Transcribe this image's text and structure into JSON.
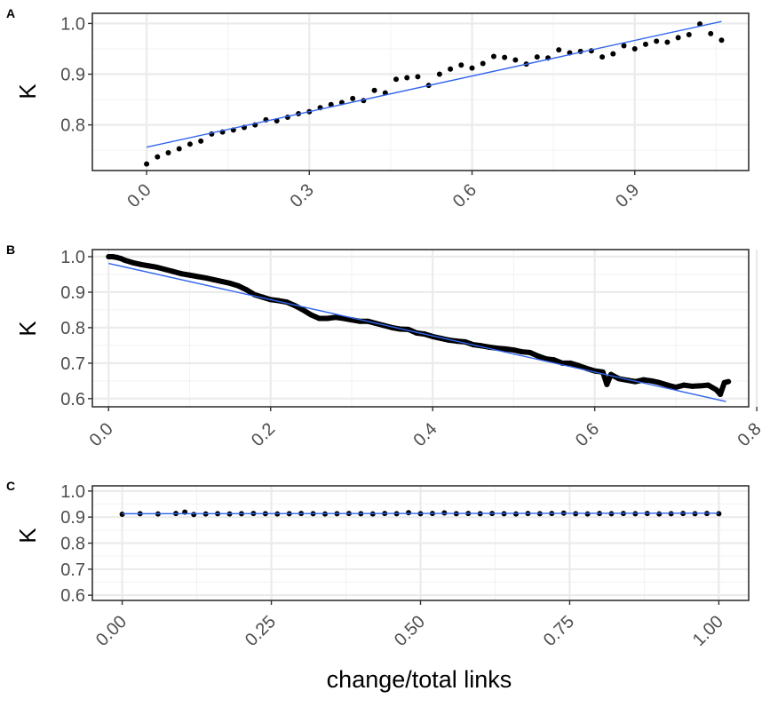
{
  "figure": {
    "xlabel": "change/total links"
  },
  "chart_data": [
    {
      "panel": "A",
      "type": "scatter",
      "title": "",
      "xlabel": "",
      "ylabel": "K",
      "xlim": [
        -0.1,
        1.11
      ],
      "ylim": [
        0.71,
        1.02
      ],
      "xticks": [
        0.0,
        0.3,
        0.6,
        0.9
      ],
      "xtick_labels": [
        "0.0",
        "0.3",
        "0.6",
        "0.9"
      ],
      "yticks": [
        0.8,
        0.9,
        1.0
      ],
      "ytick_labels": [
        "0.8",
        "0.9",
        "1.0"
      ],
      "grid": true,
      "trend_line": {
        "x": [
          0.0,
          1.06
        ],
        "y": [
          0.756,
          1.004
        ],
        "color": "#3366ee"
      },
      "x": [
        0.0,
        0.02,
        0.04,
        0.06,
        0.08,
        0.1,
        0.12,
        0.14,
        0.16,
        0.18,
        0.2,
        0.22,
        0.24,
        0.26,
        0.28,
        0.3,
        0.32,
        0.34,
        0.36,
        0.38,
        0.4,
        0.42,
        0.44,
        0.46,
        0.48,
        0.5,
        0.52,
        0.54,
        0.56,
        0.58,
        0.6,
        0.62,
        0.64,
        0.66,
        0.68,
        0.7,
        0.72,
        0.74,
        0.76,
        0.78,
        0.8,
        0.82,
        0.84,
        0.86,
        0.88,
        0.9,
        0.92,
        0.94,
        0.96,
        0.98,
        1.0,
        1.02,
        1.04,
        1.06
      ],
      "y": [
        0.723,
        0.737,
        0.745,
        0.753,
        0.762,
        0.768,
        0.782,
        0.786,
        0.79,
        0.795,
        0.8,
        0.81,
        0.808,
        0.815,
        0.822,
        0.826,
        0.834,
        0.84,
        0.844,
        0.852,
        0.848,
        0.868,
        0.863,
        0.89,
        0.893,
        0.895,
        0.878,
        0.9,
        0.91,
        0.918,
        0.912,
        0.921,
        0.935,
        0.933,
        0.928,
        0.92,
        0.934,
        0.932,
        0.948,
        0.942,
        0.945,
        0.946,
        0.934,
        0.94,
        0.956,
        0.95,
        0.959,
        0.965,
        0.963,
        0.972,
        0.978,
        0.999,
        0.98,
        0.967
      ]
    },
    {
      "panel": "B",
      "type": "scatter",
      "title": "",
      "xlabel": "",
      "ylabel": "K",
      "xlim": [
        -0.02,
        0.79
      ],
      "ylim": [
        0.577,
        1.02
      ],
      "xticks": [
        0.0,
        0.2,
        0.4,
        0.6,
        0.8
      ],
      "xtick_labels": [
        "0.0",
        "0.2",
        "0.4",
        "0.6",
        "0.8"
      ],
      "yticks": [
        0.6,
        0.7,
        0.8,
        0.9,
        1.0
      ],
      "ytick_labels": [
        "0.6",
        "0.7",
        "0.8",
        "0.9",
        "1.0"
      ],
      "grid": true,
      "trend_line": {
        "x": [
          0.0,
          0.762
        ],
        "y": [
          0.981,
          0.592
        ],
        "color": "#3366ee"
      },
      "x": [
        0.0,
        0.005,
        0.01,
        0.015,
        0.02,
        0.03,
        0.04,
        0.05,
        0.06,
        0.07,
        0.08,
        0.09,
        0.1,
        0.11,
        0.12,
        0.13,
        0.14,
        0.15,
        0.16,
        0.17,
        0.18,
        0.19,
        0.2,
        0.21,
        0.22,
        0.23,
        0.24,
        0.25,
        0.26,
        0.27,
        0.28,
        0.29,
        0.3,
        0.31,
        0.32,
        0.33,
        0.34,
        0.35,
        0.36,
        0.37,
        0.38,
        0.39,
        0.4,
        0.41,
        0.42,
        0.43,
        0.44,
        0.45,
        0.46,
        0.47,
        0.48,
        0.49,
        0.5,
        0.51,
        0.52,
        0.53,
        0.54,
        0.55,
        0.56,
        0.57,
        0.58,
        0.59,
        0.6,
        0.61,
        0.615,
        0.62,
        0.63,
        0.64,
        0.65,
        0.66,
        0.67,
        0.68,
        0.69,
        0.7,
        0.71,
        0.72,
        0.73,
        0.74,
        0.75,
        0.755,
        0.76,
        0.765
      ],
      "y": [
        1.0,
        1.0,
        0.998,
        0.995,
        0.99,
        0.983,
        0.978,
        0.974,
        0.97,
        0.964,
        0.958,
        0.952,
        0.948,
        0.944,
        0.94,
        0.935,
        0.93,
        0.925,
        0.918,
        0.907,
        0.893,
        0.886,
        0.879,
        0.876,
        0.872,
        0.862,
        0.85,
        0.836,
        0.826,
        0.826,
        0.829,
        0.826,
        0.822,
        0.818,
        0.818,
        0.812,
        0.806,
        0.8,
        0.796,
        0.795,
        0.785,
        0.782,
        0.775,
        0.77,
        0.765,
        0.762,
        0.76,
        0.752,
        0.749,
        0.745,
        0.742,
        0.74,
        0.737,
        0.732,
        0.73,
        0.72,
        0.712,
        0.709,
        0.7,
        0.7,
        0.693,
        0.685,
        0.678,
        0.675,
        0.64,
        0.668,
        0.656,
        0.652,
        0.648,
        0.653,
        0.65,
        0.645,
        0.638,
        0.632,
        0.638,
        0.635,
        0.636,
        0.638,
        0.625,
        0.612,
        0.645,
        0.648
      ]
    },
    {
      "panel": "C",
      "type": "scatter",
      "title": "",
      "xlabel": "",
      "ylabel": "K",
      "xlim": [
        -0.05,
        1.05
      ],
      "ylim": [
        0.58,
        1.02
      ],
      "xticks": [
        0.0,
        0.25,
        0.5,
        0.75,
        1.0
      ],
      "xtick_labels": [
        "0.00",
        "0.25",
        "0.50",
        "0.75",
        "1.00"
      ],
      "yticks": [
        0.6,
        0.7,
        0.8,
        0.9,
        1.0
      ],
      "ytick_labels": [
        "0.6",
        "0.7",
        "0.8",
        "0.9",
        "1.0"
      ],
      "grid": true,
      "trend_line": {
        "x": [
          0.0,
          1.0
        ],
        "y": [
          0.913,
          0.915
        ],
        "color": "#3366ee"
      },
      "x": [
        0.0,
        0.03,
        0.06,
        0.09,
        0.105,
        0.12,
        0.14,
        0.16,
        0.18,
        0.2,
        0.22,
        0.24,
        0.26,
        0.28,
        0.3,
        0.32,
        0.34,
        0.36,
        0.38,
        0.4,
        0.42,
        0.44,
        0.46,
        0.48,
        0.5,
        0.52,
        0.54,
        0.56,
        0.58,
        0.6,
        0.62,
        0.64,
        0.66,
        0.68,
        0.7,
        0.72,
        0.74,
        0.76,
        0.78,
        0.8,
        0.82,
        0.84,
        0.86,
        0.88,
        0.9,
        0.92,
        0.94,
        0.96,
        0.98,
        1.0
      ],
      "y": [
        0.911,
        0.913,
        0.912,
        0.914,
        0.919,
        0.91,
        0.912,
        0.913,
        0.912,
        0.913,
        0.914,
        0.913,
        0.912,
        0.913,
        0.914,
        0.913,
        0.912,
        0.913,
        0.914,
        0.913,
        0.912,
        0.914,
        0.913,
        0.917,
        0.913,
        0.914,
        0.916,
        0.913,
        0.914,
        0.913,
        0.914,
        0.913,
        0.912,
        0.914,
        0.913,
        0.914,
        0.915,
        0.913,
        0.912,
        0.914,
        0.913,
        0.914,
        0.913,
        0.914,
        0.912,
        0.913,
        0.914,
        0.913,
        0.914,
        0.913
      ]
    }
  ]
}
